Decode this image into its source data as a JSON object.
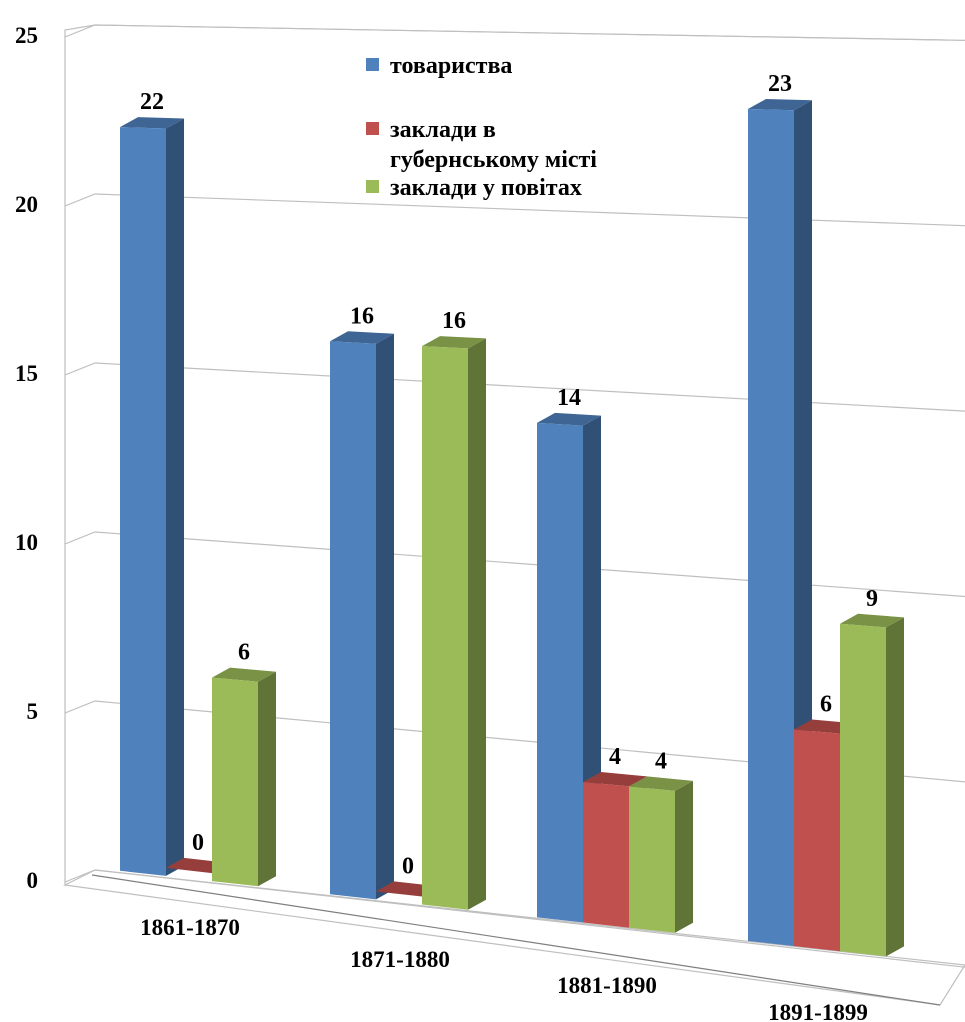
{
  "chart_data": {
    "type": "bar",
    "title": "",
    "xlabel": "",
    "ylabel": "",
    "categories": [
      "1861-1870",
      "1871-1880",
      "1881-1890",
      "1891-1899"
    ],
    "series": [
      {
        "name": "товариства",
        "values": [
          22,
          16,
          14,
          23
        ],
        "color": "#4F81BD"
      },
      {
        "name": "заклади в губернському місті",
        "values": [
          0,
          0,
          4,
          6
        ],
        "color": "#C0504D"
      },
      {
        "name": "заклади у повітах",
        "values": [
          6,
          16,
          4,
          9
        ],
        "color": "#9BBB59"
      }
    ],
    "y_ticks": [
      "0",
      "5",
      "10",
      "15",
      "20",
      "25"
    ],
    "ylim": [
      0,
      25
    ],
    "grid": true,
    "legend_position": "top-center",
    "legend_lines": [
      [
        "товариства"
      ],
      [
        "заклади в",
        "губернському місті"
      ],
      [
        "заклади у повітах"
      ]
    ]
  }
}
